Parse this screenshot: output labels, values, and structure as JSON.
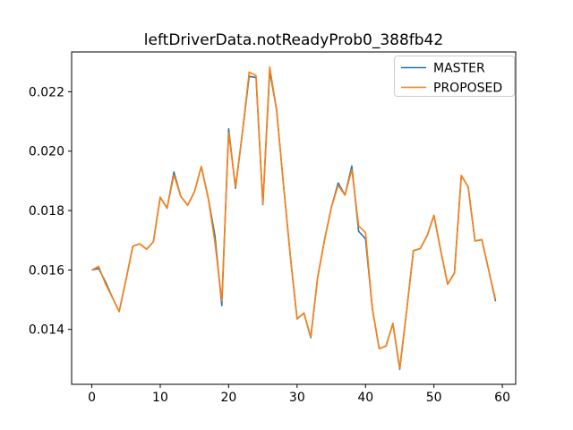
{
  "chart_data": {
    "type": "line",
    "title": "leftDriverData.notReadyProb0_388fb42",
    "xlabel": "",
    "ylabel": "",
    "grid": false,
    "legend_position": "upper right",
    "xlim": [
      -2.95,
      61.95
    ],
    "ylim": [
      0.012151,
      0.023339
    ],
    "x_ticks": {
      "values": [
        0,
        10,
        20,
        30,
        40,
        50,
        60
      ],
      "labels": [
        "0",
        "10",
        "20",
        "30",
        "40",
        "50",
        "60"
      ]
    },
    "y_ticks": {
      "values": [
        0.014,
        0.016,
        0.018,
        0.02,
        0.022
      ],
      "labels": [
        "0.014",
        "0.016",
        "0.018",
        "0.020",
        "0.022"
      ]
    },
    "x": [
      0,
      1,
      2,
      3,
      4,
      5,
      6,
      7,
      8,
      9,
      10,
      11,
      12,
      13,
      14,
      15,
      16,
      17,
      18,
      19,
      20,
      21,
      22,
      23,
      24,
      25,
      26,
      27,
      28,
      29,
      30,
      31,
      32,
      33,
      34,
      35,
      36,
      37,
      38,
      39,
      40,
      41,
      42,
      43,
      44,
      45,
      46,
      47,
      48,
      49,
      50,
      51,
      52,
      53,
      54,
      55,
      56,
      57,
      58,
      59
    ],
    "series": [
      {
        "name": "MASTER",
        "color": "#1f77b4",
        "values": [
          0.016,
          0.01605,
          0.0156,
          0.01508,
          0.0146,
          0.01568,
          0.0168,
          0.01688,
          0.0167,
          0.01695,
          0.01845,
          0.01808,
          0.0193,
          0.01848,
          0.01818,
          0.01863,
          0.01948,
          0.01844,
          0.01715,
          0.0148,
          0.02075,
          0.01875,
          0.0206,
          0.02252,
          0.02248,
          0.0182,
          0.0227,
          0.0214,
          0.0189,
          0.0165,
          0.01435,
          0.01455,
          0.01372,
          0.01574,
          0.017,
          0.0181,
          0.01893,
          0.01852,
          0.0195,
          0.0173,
          0.01705,
          0.0147,
          0.01335,
          0.01344,
          0.0142,
          0.01266,
          0.0146,
          0.01665,
          0.01672,
          0.01715,
          0.01784,
          0.01665,
          0.01552,
          0.0159,
          0.01918,
          0.0188,
          0.01698,
          0.01702,
          0.016,
          0.01495
        ]
      },
      {
        "name": "PROPOSED",
        "color": "#ff7f0e",
        "values": [
          0.016,
          0.01612,
          0.01553,
          0.01508,
          0.0146,
          0.01568,
          0.0168,
          0.01688,
          0.0167,
          0.01695,
          0.01845,
          0.01808,
          0.0192,
          0.01848,
          0.01818,
          0.01863,
          0.01948,
          0.01844,
          0.01692,
          0.01496,
          0.02062,
          0.0188,
          0.0206,
          0.02266,
          0.02254,
          0.01822,
          0.02283,
          0.0214,
          0.0189,
          0.0165,
          0.01435,
          0.01455,
          0.01375,
          0.01574,
          0.017,
          0.0181,
          0.01885,
          0.01852,
          0.01938,
          0.01748,
          0.01726,
          0.0147,
          0.01335,
          0.01344,
          0.0142,
          0.0127,
          0.0146,
          0.01665,
          0.01672,
          0.01715,
          0.01784,
          0.01665,
          0.01552,
          0.0159,
          0.01918,
          0.0188,
          0.01698,
          0.01702,
          0.016,
          0.015
        ]
      }
    ],
    "legend": {
      "entries": [
        "MASTER",
        "PROPOSED"
      ]
    },
    "colors": {
      "spine": "#000000",
      "background": "#ffffff",
      "legend_border": "#cccccc"
    }
  }
}
